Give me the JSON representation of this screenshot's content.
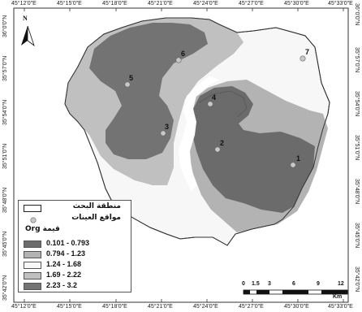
{
  "colors": {
    "class1": "#6b6b6b",
    "class2": "#b3b3b3",
    "class3": "#f7f7f7",
    "class4": "#c0c0c0",
    "class5": "#737373",
    "sample_point": "#c8c8c8",
    "frame": "#333333"
  },
  "axis": {
    "top_ticks": [
      "45°12'0\"E",
      "45°15'0\"E",
      "45°18'0\"E",
      "45°21'0\"E",
      "45°24'0\"E",
      "45°27'0\"E",
      "45°30'0\"E",
      "45°33'0\"E"
    ],
    "bottom_ticks": [
      "45°12'0\"E",
      "45°15'0\"E",
      "45°18'0\"E",
      "45°21'0\"E",
      "45°24'0\"E",
      "45°27'0\"E",
      "45°30'0\"E",
      "45°33'0\"E"
    ],
    "left_ticks": [
      "36°0'0\"N",
      "35°57'0\"N",
      "35°54'0\"N",
      "35°51'0\"N",
      "35°48'0\"N",
      "35°45'0\"N",
      "35°42'0\"N"
    ],
    "right_ticks": [
      "36°0'0\"N",
      "35°57'0\"N",
      "35°54'0\"N",
      "35°51'0\"N",
      "35°48'0\"N",
      "35°45'0\"N",
      "35°42'0\"N"
    ]
  },
  "north_arrow": {
    "label": "N",
    "icon": "north-arrow-icon"
  },
  "samples": [
    {
      "id": "1"
    },
    {
      "id": "2"
    },
    {
      "id": "3"
    },
    {
      "id": "4"
    },
    {
      "id": "5"
    },
    {
      "id": "6"
    },
    {
      "id": "7"
    }
  ],
  "legend": {
    "study_area": "منطقة البحث",
    "sample_sites": "مواقع العينات",
    "value_title": "Org قيمة",
    "classes": [
      {
        "range": "0.101 - 0.793",
        "color": "#6b6b6b"
      },
      {
        "range": "0.794 - 1.23",
        "color": "#b3b3b3"
      },
      {
        "range": "1.24 - 1.68",
        "color": "#f7f7f7"
      },
      {
        "range": "1.69 - 2.22",
        "color": "#c0c0c0"
      },
      {
        "range": "2.23 - 3.2",
        "color": "#737373"
      }
    ]
  },
  "scale_bar": {
    "labels": [
      "0",
      "1.5",
      "3",
      "6",
      "9",
      "12"
    ],
    "unit": "Km"
  }
}
